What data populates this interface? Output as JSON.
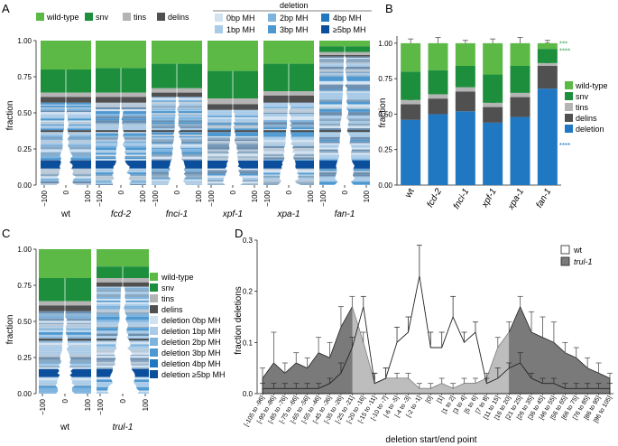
{
  "colors": {
    "wt": "#5cb946",
    "snv": "#1d8f3c",
    "tins": "#b4b4b4",
    "delins": "#505050",
    "mh0": "#d2e2f1",
    "mh1": "#a9cbe8",
    "mh2": "#7eb3de",
    "mh3": "#4d98d0",
    "mh4": "#1f78c1",
    "mh5": "#0b4f9c",
    "deletion": "#1f78c1",
    "trul_fill": "#7a7a7a",
    "stars": "#1f78c1",
    "stars_green": "#3aa655"
  },
  "panel_labels": {
    "a": "A",
    "b": "B",
    "c": "C",
    "d": "D"
  },
  "panel_a": {
    "legend": {
      "wt": "wild-type",
      "snv": "snv",
      "tins": "tins",
      "delins": "delins"
    },
    "deletion_title": "deletion",
    "mh_labels": [
      "0bp MH",
      "1bp MH",
      "2bp MH",
      "3bp MH",
      "4bp MH",
      "≥5bp MH"
    ],
    "ylabel": "fraction",
    "yticks": [
      "0.00",
      "0.25",
      "0.50",
      "0.75",
      "1.00"
    ],
    "xticks": [
      "−100",
      "0",
      "100"
    ],
    "conditions": [
      "wt",
      "fcd-2",
      "fnci-1",
      "xpf-1",
      "xpa-1",
      "fan-1"
    ],
    "fractions": [
      {
        "wt": 0.2,
        "snv": 0.16,
        "tins": 0.03,
        "delins": 0.04
      },
      {
        "wt": 0.19,
        "snv": 0.17,
        "tins": 0.03,
        "delins": 0.04
      },
      {
        "wt": 0.16,
        "snv": 0.17,
        "tins": 0.03,
        "delins": 0.03
      },
      {
        "wt": 0.21,
        "snv": 0.19,
        "tins": 0.04,
        "delins": 0.04
      },
      {
        "wt": 0.16,
        "snv": 0.19,
        "tins": 0.03,
        "delins": 0.05
      },
      {
        "wt": 0.04,
        "snv": 0.04,
        "tins": 0.02,
        "delins": 0.01
      }
    ]
  },
  "chart_data": [
    {
      "type": "bar",
      "title": "B",
      "categories": [
        "wt",
        "fcd-2",
        "fnci-1",
        "xpf-1",
        "xpa-1",
        "fan-1"
      ],
      "series": [
        {
          "name": "deletion",
          "values": [
            0.46,
            0.5,
            0.52,
            0.44,
            0.48,
            0.68
          ]
        },
        {
          "name": "delins",
          "values": [
            0.11,
            0.11,
            0.14,
            0.11,
            0.14,
            0.16
          ]
        },
        {
          "name": "tins",
          "values": [
            0.03,
            0.03,
            0.03,
            0.03,
            0.03,
            0.02
          ]
        },
        {
          "name": "snv",
          "values": [
            0.2,
            0.17,
            0.15,
            0.2,
            0.19,
            0.1
          ]
        },
        {
          "name": "wild-type",
          "values": [
            0.2,
            0.19,
            0.16,
            0.22,
            0.16,
            0.04
          ]
        }
      ],
      "errors": [
        0.04,
        0.04,
        0.05,
        0.05,
        0.05,
        0.02
      ],
      "ylabel": "fraction",
      "ylim": [
        0,
        1.05
      ],
      "yticks": [
        "0.00",
        "0.25",
        "0.50",
        "0.75",
        "1.00"
      ],
      "legend": [
        "wild-type",
        "snv",
        "tins",
        "delins",
        "deletion"
      ],
      "annotations": {
        "top": "***",
        "snv": "****",
        "deletion": "****"
      }
    },
    {
      "type": "area",
      "title": "D",
      "ylabel": "fraction deletions",
      "xlabel": "deletion start/end point",
      "ylim": [
        0,
        0.3
      ],
      "yticks": [
        "0.0",
        "0.1",
        "0.2",
        "0.3"
      ],
      "categories": [
        "[-105 to -96]",
        "[-95 to -86]",
        "[-85 to -76]",
        "[-75 to -66]",
        "[-65 to -56]",
        "[-55 to -46]",
        "[-45 to -36]",
        "[-35 to -26]",
        "[-25 to -21]",
        "[-20 to -16]",
        "[-15 to -11]",
        "[-10 to -7]",
        "[-6 to -5]",
        "[-4 to -3]",
        "[-2 to -1]",
        "[0]",
        "[1]",
        "[1 to 2]",
        "[3 to 4]",
        "[5 to 6]",
        "[7 to 8]",
        "[11 to 15]",
        "[16 to 20]",
        "[21 to 25]",
        "[26 to 35]",
        "[36 to 45]",
        "[46 to 55]",
        "[56 to 65]",
        "[66 to 75]",
        "[76 to 85]",
        "[86 to 95]",
        "[96 to 105]"
      ],
      "series": [
        {
          "name": "wt",
          "values": [
            0.01,
            0.01,
            0.01,
            0.01,
            0.01,
            0.01,
            0.02,
            0.04,
            0.09,
            0.17,
            0.02,
            0.03,
            0.1,
            0.12,
            0.23,
            0.09,
            0.09,
            0.15,
            0.1,
            0.12,
            0.02,
            0.03,
            0.05,
            0.06,
            0.03,
            0.02,
            0.02,
            0.01,
            0.01,
            0.01,
            0.01,
            0.01
          ],
          "errors": [
            0.01,
            0.01,
            0.01,
            0.01,
            0.01,
            0.01,
            0.01,
            0.02,
            0.02,
            0.02,
            0.02,
            0.02,
            0.03,
            0.03,
            0.06,
            0.03,
            0.03,
            0.04,
            0.02,
            0.02,
            0.01,
            0.02,
            0.01,
            0.02,
            0.01,
            0.01,
            0.01,
            0.01,
            0.01,
            0.01,
            0.01,
            0.01
          ]
        },
        {
          "name": "trul-1",
          "values": [
            0.03,
            0.06,
            0.04,
            0.06,
            0.05,
            0.08,
            0.07,
            0.13,
            0.17,
            0.1,
            0.02,
            0.03,
            0.03,
            0.03,
            0.01,
            0.01,
            0.02,
            0.01,
            0.02,
            0.02,
            0.03,
            0.09,
            0.12,
            0.17,
            0.12,
            0.11,
            0.1,
            0.08,
            0.07,
            0.05,
            0.04,
            0.03
          ],
          "errors": [
            0.02,
            0.06,
            0.02,
            0.02,
            0.02,
            0.03,
            0.03,
            0.04,
            0.02,
            0.02,
            0.02,
            0.02,
            0.01,
            0.01,
            0.01,
            0.01,
            0.01,
            0.01,
            0.01,
            0.01,
            0.01,
            0.02,
            0.02,
            0.02,
            0.04,
            0.04,
            0.04,
            0.02,
            0.02,
            0.02,
            0.02,
            0.01
          ]
        }
      ],
      "legend": [
        "wt",
        "trul-1"
      ]
    }
  ],
  "panel_c": {
    "conditions": [
      "wt",
      "trul-1"
    ],
    "legend": [
      "wild-type",
      "snv",
      "tins",
      "delins",
      "deletion 0bp MH",
      "deletion 1bp MH",
      "deletion 2bp MH",
      "deletion 3bp MH",
      "deletion 4bp MH",
      "deletion ≥5bp MH"
    ],
    "ylabel": "fraction",
    "yticks": [
      "0.00",
      "0.25",
      "0.50",
      "0.75",
      "1.00"
    ],
    "xticks": [
      "−100",
      "0",
      "100"
    ],
    "fractions": [
      {
        "wt": 0.2,
        "snv": 0.16,
        "tins": 0.03,
        "delins": 0.04
      },
      {
        "wt": 0.12,
        "snv": 0.08,
        "tins": 0.03,
        "delins": 0.03
      }
    ]
  }
}
